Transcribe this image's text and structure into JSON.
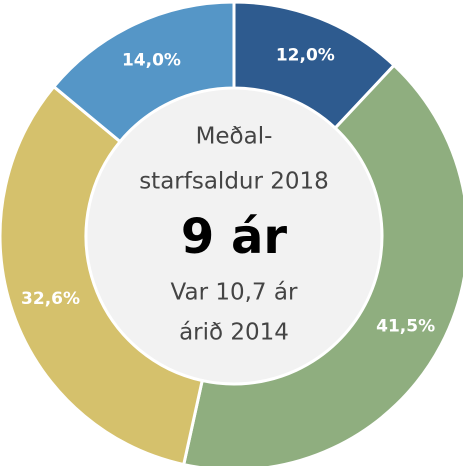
{
  "chart_data": {
    "type": "donut",
    "values": [
      12.0,
      41.5,
      32.6,
      14.0
    ],
    "value_labels": [
      "12,0%",
      "41,5%",
      "32,6%",
      "14,0%"
    ],
    "colors": [
      "#2e5b8f",
      "#8fae7f",
      "#d5c16c",
      "#5596c7"
    ],
    "center_text": [
      "Meðal-",
      "starfsaldur 2018",
      "9 ár",
      "Var 10,7 ár",
      "árið 2014"
    ]
  }
}
